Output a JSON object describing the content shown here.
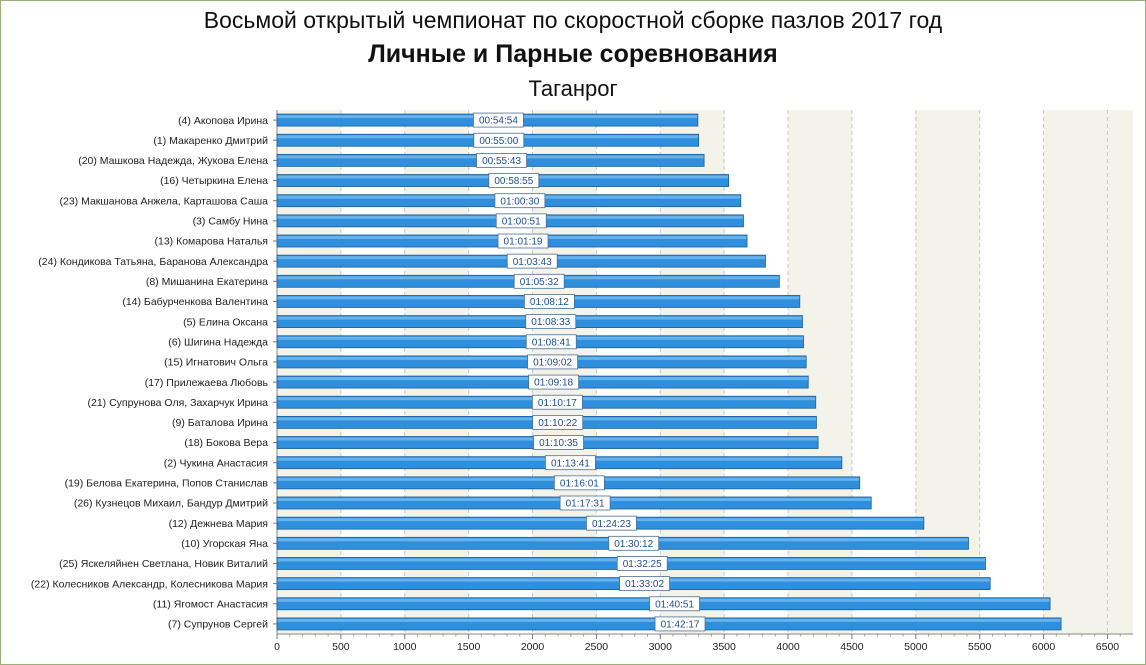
{
  "titles": {
    "line1": "Восьмой открытый чемпионат по скоростной сборке пазлов 2017 год",
    "line2": "Личные и Парные соревнования",
    "line3": "Таганрог"
  },
  "colors": {
    "bar": "#2f8fdc",
    "bar_edge": "#1a5e9a",
    "band": "#f3f3ea",
    "grid": "#c8c8c8"
  },
  "chart_data": {
    "type": "bar",
    "orientation": "horizontal",
    "categories": [
      "(4) Акопова Ирина",
      "(1) Макаренко Дмитрий",
      "(20) Машкова Надежда, Жукова Елена",
      "(16) Четыркина Елена",
      "(23) Макшанова Анжела, Карташова Саша",
      "(3) Самбу Нина",
      "(13) Комарова Наталья",
      "(24) Кондикова Татьяна, Баранова Александра",
      "(8) Мишанина Екатерина",
      "(14) Бабурченкова Валентина",
      "(5) Елина Оксана",
      "(6) Шигина Надежда",
      "(15) Игнатович Ольга",
      "(17) Прилежаева Любовь",
      "(21) Супрунова Оля, Захарчук Ирина",
      "(9) Баталова Ирина",
      "(18) Бокова Вера",
      "(2) Чукина Анастасия",
      "(19) Белова Екатерина, Попов Станислав",
      "(26) Кузнецов Михаил, Бандур Дмитрий",
      "(12) Дежнева Мария",
      "(10) Угорская Яна",
      "(25) Яскеляйнен Светлана, Новик Виталий",
      "(22) Колесников Александр, Колесникова Мария",
      "(11) Ягомост Анастасия",
      "(7) Супрунов Сергей"
    ],
    "values": [
      3294,
      3300,
      3343,
      3535,
      3630,
      3651,
      3679,
      3823,
      3932,
      4092,
      4113,
      4121,
      4142,
      4158,
      4217,
      4222,
      4235,
      4421,
      4561,
      4651,
      5063,
      5412,
      5545,
      5582,
      6051,
      6137
    ],
    "labels": [
      "00:54:54",
      "00:55:00",
      "00:55:43",
      "00:58:55",
      "01:00:30",
      "01:00:51",
      "01:01:19",
      "01:03:43",
      "01:05:32",
      "01:08:12",
      "01:08:33",
      "01:08:41",
      "01:09:02",
      "01:09:18",
      "01:10:17",
      "01:10:22",
      "01:10:35",
      "01:13:41",
      "01:16:01",
      "01:17:31",
      "01:24:23",
      "01:30:12",
      "01:32:25",
      "01:33:02",
      "01:40:51",
      "01:42:17"
    ],
    "xlim": [
      0,
      6700
    ],
    "xticks": [
      0,
      500,
      1000,
      1500,
      2000,
      2500,
      3000,
      3500,
      4000,
      4500,
      5000,
      5500,
      6000,
      6500
    ],
    "grid": true,
    "legend": "none"
  }
}
